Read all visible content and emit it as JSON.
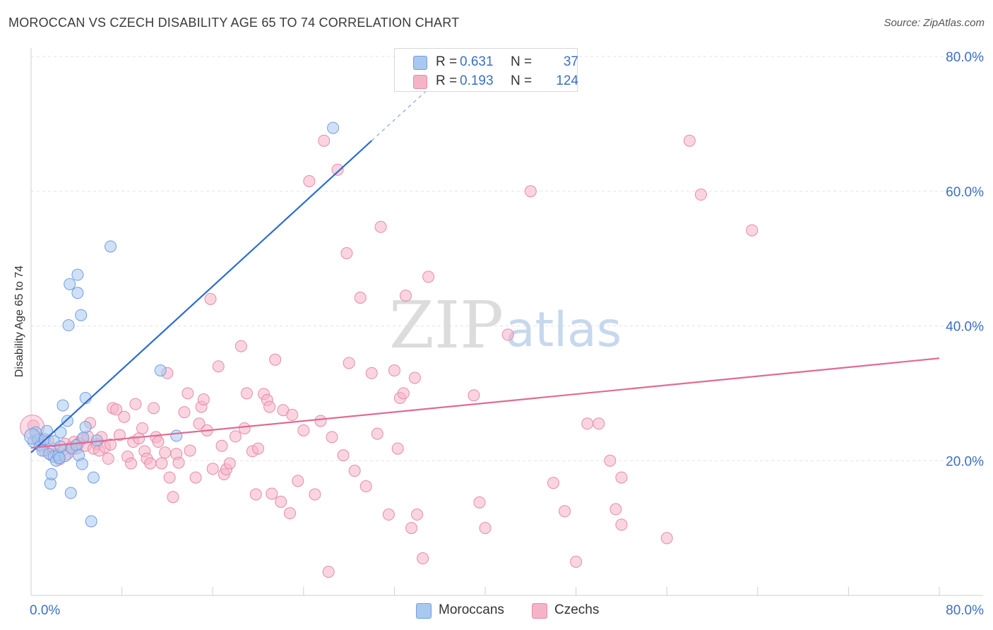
{
  "title": "MOROCCAN VS CZECH DISABILITY AGE 65 TO 74 CORRELATION CHART",
  "source": "Source: ZipAtlas.com",
  "watermark": {
    "zip": "ZIP",
    "atlas": "atlas"
  },
  "legend_top": [
    {
      "r_label": "R =",
      "r_value": "0.631",
      "n_label": "N =",
      "n_value": "37",
      "color": "#a9c8f0"
    },
    {
      "r_label": "R =",
      "r_value": "0.193",
      "n_label": "N =",
      "n_value": "124",
      "color": "#f5b3c7"
    }
  ],
  "legend_bottom": [
    {
      "label": "Moroccans",
      "color": "#a9c8f0"
    },
    {
      "label": "Czechs",
      "color": "#f5b3c7"
    }
  ],
  "chart_data": {
    "type": "scatter",
    "title": "MOROCCAN VS CZECH DISABILITY AGE 65 TO 74 CORRELATION CHART",
    "xlabel": "",
    "ylabel": "Disability Age 65 to 74",
    "xlim": [
      0,
      0.8
    ],
    "ylim": [
      0,
      0.8
    ],
    "x_tick_labels": [
      "0.0%",
      "80.0%"
    ],
    "y_ticks": [
      0.2,
      0.4,
      0.6,
      0.8
    ],
    "y_tick_labels": [
      "20.0%",
      "40.0%",
      "60.0%",
      "80.0%"
    ],
    "grid": true,
    "series": [
      {
        "name": "Moroccans",
        "color": "#a9c8f0",
        "edge_color": "#6f9fde",
        "line_color": "#2b6cd4",
        "trend": {
          "x0": 0.0,
          "y0": 0.212,
          "x1": 0.3,
          "y1": 0.675,
          "dash_x1": 0.35,
          "dash_y1": 0.752
        },
        "points": [
          [
            0.002,
            0.228
          ],
          [
            0.004,
            0.242
          ],
          [
            0.006,
            0.231
          ],
          [
            0.008,
            0.223
          ],
          [
            0.01,
            0.215
          ],
          [
            0.012,
            0.232
          ],
          [
            0.014,
            0.244
          ],
          [
            0.016,
            0.21
          ],
          [
            0.017,
            0.166
          ],
          [
            0.018,
            0.18
          ],
          [
            0.02,
            0.206
          ],
          [
            0.022,
            0.2
          ],
          [
            0.024,
            0.208
          ],
          [
            0.02,
            0.229
          ],
          [
            0.026,
            0.242
          ],
          [
            0.028,
            0.282
          ],
          [
            0.03,
            0.207
          ],
          [
            0.032,
            0.259
          ],
          [
            0.025,
            0.204
          ],
          [
            0.026,
            0.221
          ],
          [
            0.035,
            0.152
          ],
          [
            0.036,
            0.218
          ],
          [
            0.04,
            0.223
          ],
          [
            0.042,
            0.208
          ],
          [
            0.045,
            0.195
          ],
          [
            0.046,
            0.234
          ],
          [
            0.034,
            0.462
          ],
          [
            0.033,
            0.401
          ],
          [
            0.041,
            0.476
          ],
          [
            0.041,
            0.449
          ],
          [
            0.044,
            0.416
          ],
          [
            0.048,
            0.25
          ],
          [
            0.048,
            0.293
          ],
          [
            0.053,
            0.11
          ],
          [
            0.058,
            0.23
          ],
          [
            0.055,
            0.175
          ],
          [
            0.07,
            0.518
          ],
          [
            0.114,
            0.334
          ],
          [
            0.128,
            0.237
          ],
          [
            0.266,
            0.694
          ]
        ]
      },
      {
        "name": "Czechs",
        "color": "#f5b3c7",
        "edge_color": "#e88aa8",
        "line_color": "#e06b93",
        "trend": {
          "x0": 0.0,
          "y0": 0.219,
          "x1": 0.8,
          "y1": 0.352
        },
        "points": [
          [
            0.002,
            0.252
          ],
          [
            0.005,
            0.235
          ],
          [
            0.008,
            0.228
          ],
          [
            0.01,
            0.22
          ],
          [
            0.012,
            0.215
          ],
          [
            0.015,
            0.23
          ],
          [
            0.018,
            0.208
          ],
          [
            0.02,
            0.218
          ],
          [
            0.022,
            0.21
          ],
          [
            0.025,
            0.202
          ],
          [
            0.028,
            0.215
          ],
          [
            0.03,
            0.225
          ],
          [
            0.032,
            0.21
          ],
          [
            0.035,
            0.22
          ],
          [
            0.038,
            0.228
          ],
          [
            0.04,
            0.218
          ],
          [
            0.042,
            0.226
          ],
          [
            0.045,
            0.232
          ],
          [
            0.048,
            0.222
          ],
          [
            0.05,
            0.236
          ],
          [
            0.052,
            0.256
          ],
          [
            0.055,
            0.218
          ],
          [
            0.058,
            0.225
          ],
          [
            0.06,
            0.215
          ],
          [
            0.062,
            0.235
          ],
          [
            0.065,
            0.22
          ],
          [
            0.068,
            0.203
          ],
          [
            0.07,
            0.224
          ],
          [
            0.072,
            0.278
          ],
          [
            0.075,
            0.276
          ],
          [
            0.078,
            0.238
          ],
          [
            0.082,
            0.265
          ],
          [
            0.085,
            0.206
          ],
          [
            0.088,
            0.196
          ],
          [
            0.09,
            0.228
          ],
          [
            0.092,
            0.284
          ],
          [
            0.095,
            0.233
          ],
          [
            0.098,
            0.248
          ],
          [
            0.1,
            0.214
          ],
          [
            0.102,
            0.203
          ],
          [
            0.105,
            0.196
          ],
          [
            0.108,
            0.278
          ],
          [
            0.11,
            0.235
          ],
          [
            0.112,
            0.228
          ],
          [
            0.115,
            0.196
          ],
          [
            0.118,
            0.212
          ],
          [
            0.12,
            0.33
          ],
          [
            0.122,
            0.175
          ],
          [
            0.125,
            0.146
          ],
          [
            0.128,
            0.21
          ],
          [
            0.13,
            0.197
          ],
          [
            0.135,
            0.272
          ],
          [
            0.138,
            0.3
          ],
          [
            0.14,
            0.215
          ],
          [
            0.145,
            0.175
          ],
          [
            0.148,
            0.255
          ],
          [
            0.15,
            0.28
          ],
          [
            0.152,
            0.291
          ],
          [
            0.155,
            0.245
          ],
          [
            0.158,
            0.44
          ],
          [
            0.16,
            0.188
          ],
          [
            0.165,
            0.34
          ],
          [
            0.168,
            0.222
          ],
          [
            0.17,
            0.18
          ],
          [
            0.172,
            0.187
          ],
          [
            0.175,
            0.196
          ],
          [
            0.18,
            0.236
          ],
          [
            0.185,
            0.37
          ],
          [
            0.188,
            0.248
          ],
          [
            0.19,
            0.3
          ],
          [
            0.195,
            0.214
          ],
          [
            0.198,
            0.15
          ],
          [
            0.2,
            0.218
          ],
          [
            0.205,
            0.299
          ],
          [
            0.208,
            0.29
          ],
          [
            0.21,
            0.28
          ],
          [
            0.212,
            0.151
          ],
          [
            0.215,
            0.35
          ],
          [
            0.22,
            0.139
          ],
          [
            0.222,
            0.275
          ],
          [
            0.228,
            0.122
          ],
          [
            0.23,
            0.268
          ],
          [
            0.235,
            0.17
          ],
          [
            0.24,
            0.245
          ],
          [
            0.245,
            0.615
          ],
          [
            0.25,
            0.15
          ],
          [
            0.255,
            0.259
          ],
          [
            0.258,
            0.675
          ],
          [
            0.262,
            0.035
          ],
          [
            0.265,
            0.235
          ],
          [
            0.27,
            0.632
          ],
          [
            0.275,
            0.208
          ],
          [
            0.278,
            0.508
          ],
          [
            0.28,
            0.345
          ],
          [
            0.285,
            0.185
          ],
          [
            0.29,
            0.442
          ],
          [
            0.295,
            0.162
          ],
          [
            0.3,
            0.33
          ],
          [
            0.305,
            0.24
          ],
          [
            0.308,
            0.547
          ],
          [
            0.315,
            0.12
          ],
          [
            0.32,
            0.334
          ],
          [
            0.323,
            0.218
          ],
          [
            0.325,
            0.293
          ],
          [
            0.328,
            0.3
          ],
          [
            0.33,
            0.445
          ],
          [
            0.335,
            0.1
          ],
          [
            0.338,
            0.323
          ],
          [
            0.34,
            0.12
          ],
          [
            0.345,
            0.055
          ],
          [
            0.35,
            0.473
          ],
          [
            0.39,
            0.297
          ],
          [
            0.395,
            0.138
          ],
          [
            0.4,
            0.1
          ],
          [
            0.42,
            0.387
          ],
          [
            0.44,
            0.6
          ],
          [
            0.46,
            0.167
          ],
          [
            0.47,
            0.125
          ],
          [
            0.48,
            0.05
          ],
          [
            0.49,
            0.255
          ],
          [
            0.5,
            0.255
          ],
          [
            0.51,
            0.2
          ],
          [
            0.515,
            0.128
          ],
          [
            0.52,
            0.175
          ],
          [
            0.52,
            0.105
          ],
          [
            0.56,
            0.085
          ],
          [
            0.58,
            0.675
          ],
          [
            0.59,
            0.595
          ],
          [
            0.635,
            0.542
          ]
        ]
      }
    ]
  }
}
